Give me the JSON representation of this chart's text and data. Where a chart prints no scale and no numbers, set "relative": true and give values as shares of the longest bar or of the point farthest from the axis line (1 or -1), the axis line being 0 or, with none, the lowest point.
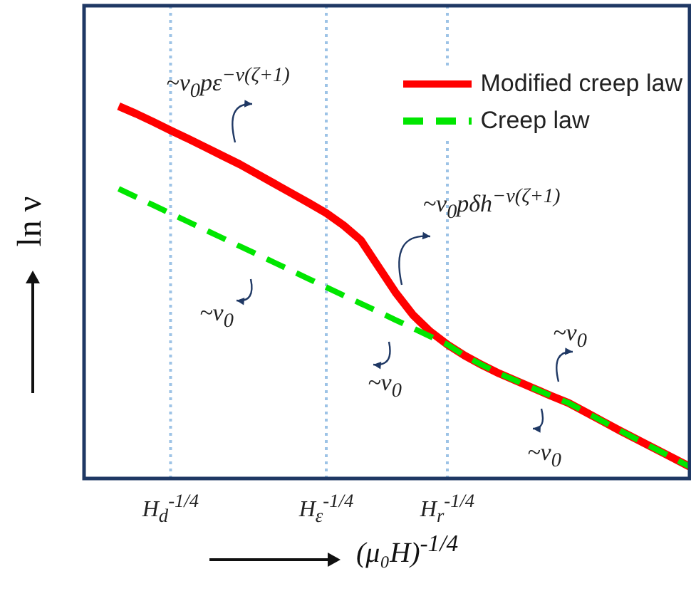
{
  "chart_data": {
    "type": "line",
    "relative": true,
    "xlabel": "(μ₀H)$^{-1/4}$",
    "ylabel": "ln ν",
    "categories": [
      null,
      null,
      null,
      null,
      null,
      "H$_{d}$$^{-1/4}$",
      null,
      null,
      null,
      null,
      null,
      null,
      null,
      null,
      "H$_{ε}$$^{-1/4}$",
      null,
      null,
      null,
      null,
      null,
      null,
      "H$_{r}$$^{-1/4}$",
      null,
      null,
      null,
      null,
      null,
      null,
      null,
      null,
      null,
      null,
      null,
      null,
      null,
      null
    ],
    "ref_lines": [
      {
        "axis": "x",
        "value": "H$_{d}$$^{-1/4}$",
        "color": "#9dc3e6",
        "line_style": "dotted"
      },
      {
        "axis": "x",
        "value": "H$_{ε}$$^{-1/4}$",
        "color": "#9dc3e6",
        "line_style": "dotted"
      },
      {
        "axis": "x",
        "value": "H$_{r}$$^{-1/4}$",
        "color": "#9dc3e6",
        "line_style": "dotted"
      }
    ],
    "legend": "top right",
    "marker": "none",
    "series": [
      {
        "name": "Modified creep law",
        "color": "#ff0000",
        "line_style": "solid",
        "values": [
          null,
          null,
          1.0,
          0.98,
          0.958,
          0.935,
          0.913,
          0.89,
          0.867,
          0.844,
          0.818,
          0.792,
          0.766,
          0.74,
          0.713,
          0.68,
          0.64,
          0.57,
          0.5,
          0.44,
          0.395,
          0.36,
          0.33,
          0.305,
          0.282,
          0.262,
          0.242,
          0.222,
          0.203,
          0.178,
          0.153,
          0.128,
          0.104,
          0.08,
          0.056,
          0.032
        ]
      },
      {
        "name": "Creep law",
        "color": "#00e600",
        "line_style": "dashed",
        "values": [
          null,
          null,
          0.778,
          0.756,
          0.734,
          0.712,
          0.69,
          0.668,
          0.646,
          0.624,
          0.602,
          0.58,
          0.558,
          0.536,
          0.514,
          0.492,
          0.47,
          0.448,
          0.426,
          0.404,
          0.382,
          0.36,
          0.33,
          0.305,
          0.282,
          0.262,
          0.242,
          0.222,
          0.203,
          0.178,
          0.153,
          0.128,
          0.104,
          0.08,
          0.056,
          0.032
        ]
      }
    ],
    "annotations": [
      "~v$_{0}$pε$^{−ν(ζ+1)}$",
      "~v$_{0}$pδh$^{−ν(ζ+1)}$",
      "~v$_{0}$",
      "~v$_{0}$",
      "~v$_{0}$",
      "~v$_{0}$"
    ]
  }
}
